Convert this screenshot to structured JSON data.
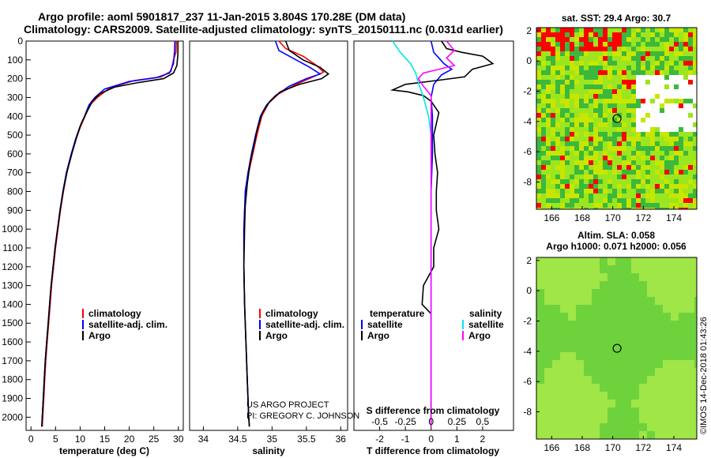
{
  "header": {
    "title_line1": "Argo profile: aoml 5901817_237 11-Jan-2015 3.804S 170.28E (DM data)",
    "title_line2": "Climatology: CARS2009. Satellite-adjusted climatology: synTS_20150111.nc (0.031d earlier)"
  },
  "credits": {
    "project": "US ARGO PROJECT",
    "pi": "PI: GREGORY C. JOHNSON",
    "imos": "©IMOS 14-Dec-2018 01:43:26"
  },
  "colors": {
    "climatology": "#ff0000",
    "satellite_adj": "#0000ff",
    "argo": "#000000",
    "satellite_salinity": "#00e5e5",
    "argo_salinity": "#ff00ff",
    "sst_green": "#3cb83c",
    "sst_yellowgreen": "#c8e600",
    "sst_lightgreen": "#9be61e",
    "sst_red": "#ff0000",
    "sla_green": "#6ed23c",
    "sla_light": "#a0e646"
  },
  "chart_data": [
    {
      "type": "line",
      "id": "temperature",
      "xlabel": "temperature (deg C)",
      "ylabel": "",
      "xlim": [
        -1,
        31
      ],
      "ylim": [
        2070,
        0
      ],
      "xticks": [
        0,
        5,
        10,
        15,
        20,
        25,
        30
      ],
      "yticks": [
        0,
        100,
        200,
        300,
        400,
        500,
        600,
        700,
        800,
        900,
        1000,
        1100,
        1200,
        1300,
        1400,
        1500,
        1600,
        1700,
        1800,
        1900,
        2000
      ],
      "legend": [
        "climatology",
        "satellite-adj. clim.",
        "Argo"
      ],
      "series": [
        {
          "name": "climatology",
          "color": "#ff0000",
          "points": [
            [
              29.6,
              0
            ],
            [
              29.5,
              60
            ],
            [
              29.0,
              100
            ],
            [
              28.5,
              160
            ],
            [
              26.5,
              190
            ],
            [
              21,
              210
            ],
            [
              16,
              250
            ],
            [
              13.5,
              300
            ],
            [
              12,
              340
            ],
            [
              11,
              400
            ],
            [
              10,
              460
            ],
            [
              9.2,
              520
            ],
            [
              8.3,
              600
            ],
            [
              7.3,
              700
            ],
            [
              6.6,
              800
            ],
            [
              6.0,
              900
            ],
            [
              5.5,
              1000
            ],
            [
              5.0,
              1100
            ],
            [
              4.6,
              1200
            ],
            [
              4.2,
              1300
            ],
            [
              3.9,
              1400
            ],
            [
              3.6,
              1500
            ],
            [
              3.3,
              1600
            ],
            [
              3.0,
              1700
            ],
            [
              2.8,
              1800
            ],
            [
              2.6,
              1900
            ],
            [
              2.4,
              2000
            ],
            [
              2.3,
              2050
            ]
          ]
        },
        {
          "name": "satellite-adj. clim.",
          "color": "#0000ff",
          "points": [
            [
              29.3,
              0
            ],
            [
              29.2,
              60
            ],
            [
              29.0,
              120
            ],
            [
              28.2,
              170
            ],
            [
              25.5,
              195
            ],
            [
              20,
              215
            ],
            [
              15,
              255
            ],
            [
              13,
              300
            ],
            [
              11.8,
              340
            ],
            [
              10.9,
              400
            ],
            [
              9.9,
              460
            ],
            [
              9.1,
              520
            ],
            [
              8.2,
              600
            ],
            [
              7.2,
              700
            ],
            [
              6.5,
              800
            ],
            [
              5.9,
              900
            ],
            [
              5.4,
              1000
            ],
            [
              4.9,
              1100
            ],
            [
              4.5,
              1200
            ],
            [
              4.1,
              1300
            ],
            [
              3.8,
              1400
            ],
            [
              3.5,
              1500
            ],
            [
              3.2,
              1600
            ],
            [
              2.9,
              1700
            ],
            [
              2.7,
              1800
            ],
            [
              2.5,
              1900
            ],
            [
              2.3,
              2000
            ],
            [
              2.2,
              2050
            ]
          ]
        },
        {
          "name": "Argo",
          "color": "#000000",
          "points": [
            [
              29.9,
              0
            ],
            [
              29.9,
              70
            ],
            [
              29.7,
              130
            ],
            [
              29.0,
              170
            ],
            [
              27,
              200
            ],
            [
              22,
              220
            ],
            [
              17,
              245
            ],
            [
              14,
              280
            ],
            [
              12.5,
              320
            ],
            [
              11.3,
              380
            ],
            [
              10.2,
              440
            ],
            [
              9.3,
              510
            ],
            [
              8.4,
              590
            ],
            [
              7.4,
              690
            ],
            [
              6.6,
              790
            ],
            [
              6.0,
              890
            ],
            [
              5.4,
              1000
            ],
            [
              4.9,
              1100
            ],
            [
              4.5,
              1200
            ],
            [
              4.1,
              1300
            ],
            [
              3.8,
              1400
            ],
            [
              3.5,
              1500
            ],
            [
              3.2,
              1600
            ],
            [
              2.9,
              1700
            ],
            [
              2.7,
              1800
            ],
            [
              2.5,
              1900
            ],
            [
              2.3,
              2000
            ],
            [
              2.2,
              2050
            ]
          ]
        }
      ]
    },
    {
      "type": "line",
      "id": "salinity",
      "xlabel": "salinity",
      "xlim": [
        33.8,
        36.1
      ],
      "ylim": [
        2070,
        0
      ],
      "xticks": [
        34,
        34.5,
        35,
        35.5,
        36
      ],
      "xticklabels": [
        "34",
        "34.5",
        "35",
        "35.5",
        "36"
      ],
      "legend": [
        "climatology",
        "satellite-adj. clim.",
        "Argo"
      ],
      "series": [
        {
          "name": "climatology",
          "color": "#ff0000",
          "points": [
            [
              35.1,
              0
            ],
            [
              35.2,
              40
            ],
            [
              35.45,
              80
            ],
            [
              35.65,
              130
            ],
            [
              35.75,
              165
            ],
            [
              35.6,
              190
            ],
            [
              35.35,
              230
            ],
            [
              35.1,
              280
            ],
            [
              34.95,
              330
            ],
            [
              34.85,
              400
            ],
            [
              34.78,
              500
            ],
            [
              34.72,
              600
            ],
            [
              34.66,
              700
            ],
            [
              34.62,
              800
            ],
            [
              34.6,
              900
            ],
            [
              34.59,
              1000
            ],
            [
              34.59,
              1200
            ],
            [
              34.6,
              1400
            ],
            [
              34.62,
              1600
            ],
            [
              34.64,
              1800
            ],
            [
              34.66,
              2000
            ],
            [
              34.67,
              2050
            ]
          ]
        },
        {
          "name": "satellite-adj. clim.",
          "color": "#0000ff",
          "points": [
            [
              35.05,
              0
            ],
            [
              35.1,
              50
            ],
            [
              35.3,
              90
            ],
            [
              35.55,
              140
            ],
            [
              35.7,
              175
            ],
            [
              35.5,
              200
            ],
            [
              35.25,
              240
            ],
            [
              35.05,
              290
            ],
            [
              34.92,
              340
            ],
            [
              34.83,
              400
            ],
            [
              34.76,
              500
            ],
            [
              34.7,
              600
            ],
            [
              34.65,
              700
            ],
            [
              34.61,
              800
            ],
            [
              34.6,
              900
            ],
            [
              34.59,
              1000
            ],
            [
              34.59,
              1200
            ],
            [
              34.6,
              1400
            ],
            [
              34.62,
              1600
            ],
            [
              34.64,
              1800
            ],
            [
              34.66,
              2000
            ],
            [
              34.67,
              2050
            ]
          ]
        },
        {
          "name": "Argo",
          "color": "#000000",
          "points": [
            [
              35.2,
              0
            ],
            [
              35.25,
              50
            ],
            [
              35.45,
              100
            ],
            [
              35.7,
              140
            ],
            [
              35.82,
              175
            ],
            [
              35.72,
              200
            ],
            [
              35.4,
              230
            ],
            [
              35.12,
              270
            ],
            [
              34.97,
              320
            ],
            [
              34.86,
              380
            ],
            [
              34.79,
              460
            ],
            [
              34.74,
              550
            ],
            [
              34.68,
              650
            ],
            [
              34.64,
              760
            ],
            [
              34.61,
              880
            ],
            [
              34.6,
              1000
            ],
            [
              34.59,
              1200
            ],
            [
              34.6,
              1400
            ],
            [
              34.62,
              1600
            ],
            [
              34.64,
              1800
            ],
            [
              34.66,
              2000
            ],
            [
              34.67,
              2050
            ]
          ]
        }
      ]
    },
    {
      "type": "line",
      "id": "difference",
      "xlabel": "T difference from climatology",
      "xlabel_top": "S difference from climatology",
      "xlim": [
        -3.0,
        3.2
      ],
      "ylim": [
        2070,
        0
      ],
      "xticks": [
        -2,
        -1,
        0,
        1,
        2
      ],
      "sticks": [
        -0.5,
        -0.25,
        0,
        0.25,
        0.5
      ],
      "sticklabels": [
        "-0.5",
        "-0.25",
        "0",
        "0.25",
        "0.5"
      ],
      "legend_left_title": "temperature",
      "legend_right_title": "salinity",
      "legend_left": [
        "satellite",
        "Argo"
      ],
      "legend_right": [
        "satellite",
        "Argo"
      ],
      "series": [
        {
          "name": "T satellite",
          "color": "#0000ff",
          "points": [
            [
              0,
              0
            ],
            [
              0.1,
              60
            ],
            [
              0.5,
              120
            ],
            [
              0.8,
              150
            ],
            [
              0.4,
              180
            ],
            [
              0.1,
              230
            ],
            [
              0,
              300
            ],
            [
              0.05,
              400
            ],
            [
              0.05,
              600
            ],
            [
              0,
              800
            ],
            [
              0,
              1000
            ],
            [
              0,
              1200
            ],
            [
              0,
              1400
            ],
            [
              0,
              1600
            ],
            [
              0,
              1800
            ],
            [
              0,
              2050
            ]
          ]
        },
        {
          "name": "T Argo",
          "color": "#000000",
          "points": [
            [
              0.4,
              0
            ],
            [
              0.6,
              40
            ],
            [
              1.2,
              60
            ],
            [
              2.0,
              80
            ],
            [
              2.4,
              120
            ],
            [
              1.6,
              150
            ],
            [
              1.3,
              190
            ],
            [
              0.2,
              210
            ],
            [
              -1.0,
              230
            ],
            [
              -1.5,
              260
            ],
            [
              -0.9,
              270
            ],
            [
              -0.3,
              290
            ],
            [
              0,
              320
            ],
            [
              0.3,
              380
            ],
            [
              0.2,
              440
            ],
            [
              0.1,
              500
            ],
            [
              0.15,
              600
            ],
            [
              0.25,
              700
            ],
            [
              0.2,
              800
            ],
            [
              0.2,
              900
            ],
            [
              0.3,
              1000
            ],
            [
              0.1,
              1100
            ],
            [
              0.1,
              1200
            ],
            [
              -0.3,
              1300
            ],
            [
              -0.35,
              1400
            ],
            [
              0,
              1450
            ],
            [
              0,
              2050
            ]
          ]
        },
        {
          "name": "S satellite",
          "color": "#00e5e5",
          "points": [
            [
              -1.5,
              0
            ],
            [
              -1.2,
              60
            ],
            [
              -0.8,
              120
            ],
            [
              -0.6,
              170
            ],
            [
              -0.5,
              220
            ],
            [
              -0.3,
              300
            ],
            [
              -0.1,
              400
            ],
            [
              0,
              500
            ],
            [
              0,
              2050
            ]
          ]
        },
        {
          "name": "S Argo",
          "color": "#ff00ff",
          "points": [
            [
              0.6,
              0
            ],
            [
              0.9,
              50
            ],
            [
              0.6,
              90
            ],
            [
              0.9,
              130
            ],
            [
              -0.3,
              170
            ],
            [
              -0.5,
              200
            ],
            [
              -0.3,
              240
            ],
            [
              0,
              290
            ],
            [
              0,
              2050
            ]
          ]
        }
      ]
    },
    {
      "type": "heatmap",
      "id": "sat_sst",
      "title": "sat. SST: 29.4 Argo: 30.7",
      "xlim": [
        165,
        175.5
      ],
      "ylim": [
        -9.8,
        2.2
      ],
      "xticks": [
        166,
        168,
        170,
        172,
        174
      ],
      "yticks": [
        2,
        0,
        -2,
        -4,
        -6,
        -8
      ],
      "marker": {
        "lon": 170.28,
        "lat": -3.804
      }
    },
    {
      "type": "heatmap",
      "id": "sla",
      "title": "Altim. SLA: 0.058",
      "subtitle": "Argo h1000: 0.071 h2000: 0.056",
      "xlim": [
        165,
        175.5
      ],
      "ylim": [
        -9.8,
        2.2
      ],
      "xticks": [
        166,
        168,
        170,
        172,
        174
      ],
      "yticks": [
        2,
        0,
        -2,
        -4,
        -6,
        -8
      ],
      "marker": {
        "lon": 170.28,
        "lat": -3.804
      }
    }
  ]
}
